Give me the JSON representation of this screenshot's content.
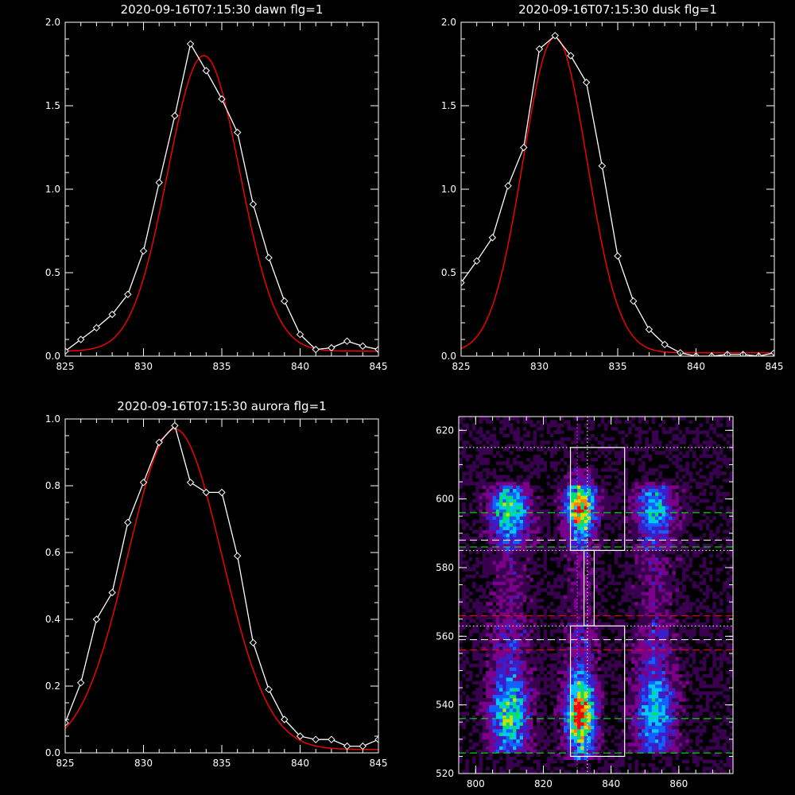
{
  "chart_data": [
    {
      "id": "dawn",
      "type": "line",
      "title": "2020-09-16T07:15:30 dawn flg=1",
      "xlim": [
        825,
        845
      ],
      "ylim": [
        0,
        2
      ],
      "xticks": [
        825,
        830,
        835,
        840,
        845
      ],
      "yticks": [
        "0.0",
        "0.5",
        "1.0",
        "1.5",
        "2.0"
      ],
      "ytick_values": [
        0,
        0.5,
        1.0,
        1.5,
        2.0
      ],
      "series": [
        {
          "role": "data",
          "color": "#ffffff",
          "marker": "diamond",
          "x": [
            825,
            826,
            827,
            828,
            829,
            830,
            831,
            832,
            833,
            834,
            835,
            836,
            837,
            838,
            839,
            840,
            841,
            842,
            843,
            844,
            845
          ],
          "y": [
            0.03,
            0.1,
            0.17,
            0.25,
            0.37,
            0.63,
            1.04,
            1.44,
            1.87,
            1.71,
            1.54,
            1.34,
            0.91,
            0.59,
            0.33,
            0.13,
            0.04,
            0.05,
            0.09,
            0.06,
            0.04
          ]
        },
        {
          "role": "fit",
          "color": "#ff0000",
          "gaussian": {
            "amplitude": 1.77,
            "center": 833.85,
            "sigma": 2.3,
            "baseline": 0.03
          }
        }
      ]
    },
    {
      "id": "dusk",
      "type": "line",
      "title": "2020-09-16T07:15:30 dusk flg=1",
      "xlim": [
        825,
        845
      ],
      "ylim": [
        0,
        2
      ],
      "xticks": [
        825,
        830,
        835,
        840,
        845
      ],
      "yticks": [
        "0.0",
        "0.5",
        "1.0",
        "1.5",
        "2.0"
      ],
      "ytick_values": [
        0,
        0.5,
        1.0,
        1.5,
        2.0
      ],
      "series": [
        {
          "role": "data",
          "color": "#ffffff",
          "marker": "diamond",
          "x": [
            825,
            826,
            827,
            828,
            829,
            830,
            831,
            832,
            833,
            834,
            835,
            836,
            837,
            838,
            839,
            840,
            841,
            842,
            843,
            844,
            845
          ],
          "y": [
            0.44,
            0.57,
            0.71,
            1.02,
            1.25,
            1.84,
            1.92,
            1.8,
            1.64,
            1.14,
            0.6,
            0.33,
            0.16,
            0.07,
            0.02,
            0.0,
            0.0,
            0.01,
            0.01,
            0.0,
            0.02
          ]
        },
        {
          "role": "fit",
          "color": "#ff0000",
          "gaussian": {
            "amplitude": 1.89,
            "center": 831.0,
            "sigma": 2.05,
            "baseline": 0.02
          }
        }
      ]
    },
    {
      "id": "aurora",
      "type": "line",
      "title": "2020-09-16T07:15:30 aurora flg=1",
      "xlim": [
        825,
        845
      ],
      "ylim": [
        0,
        1
      ],
      "xticks": [
        825,
        830,
        835,
        840,
        845
      ],
      "yticks": [
        "0.0",
        "0.2",
        "0.4",
        "0.6",
        "0.8",
        "1.0"
      ],
      "ytick_values": [
        0,
        0.2,
        0.4,
        0.6,
        0.8,
        1.0
      ],
      "series": [
        {
          "role": "data",
          "color": "#ffffff",
          "marker": "diamond",
          "x": [
            825,
            826,
            827,
            828,
            829,
            830,
            831,
            832,
            833,
            834,
            835,
            836,
            837,
            838,
            839,
            840,
            841,
            842,
            843,
            844,
            845
          ],
          "y": [
            0.09,
            0.21,
            0.4,
            0.48,
            0.69,
            0.81,
            0.93,
            0.98,
            0.81,
            0.78,
            0.78,
            0.59,
            0.33,
            0.19,
            0.1,
            0.05,
            0.04,
            0.04,
            0.02,
            0.02,
            0.04
          ]
        },
        {
          "role": "fit",
          "color": "#ff0000",
          "gaussian": {
            "amplitude": 0.96,
            "center": 832.0,
            "sigma": 3.0,
            "baseline": 0.01
          }
        }
      ]
    },
    {
      "id": "image",
      "type": "heatmap",
      "xlim": [
        795,
        876
      ],
      "ylim": [
        520,
        624
      ],
      "xticks": [
        800,
        820,
        840,
        860
      ],
      "yticks": [
        520,
        540,
        560,
        580,
        600,
        620
      ],
      "colormap": [
        "#000000",
        "#3a0050",
        "#7a008a",
        "#3b1ec8",
        "#1460ff",
        "#00c8ff",
        "#00e070",
        "#d0e000",
        "#ff8000",
        "#ff0000"
      ],
      "emission_columns": [
        {
          "x": 810,
          "width": 4,
          "y_from": 528,
          "y_to": 600,
          "peak_y": 537,
          "peak": 0.55,
          "upper_peak_y": 596,
          "upper_peak": 0.42
        },
        {
          "x": 831,
          "width": 3,
          "y_from": 526,
          "y_to": 604,
          "peak_y": 537,
          "peak": 1.0,
          "upper_peak_y": 597,
          "upper_peak": 0.72
        },
        {
          "x": 853,
          "width": 4,
          "y_from": 528,
          "y_to": 600,
          "peak_y": 537,
          "peak": 0.42,
          "upper_peak_y": 596,
          "upper_peak": 0.28
        }
      ],
      "boxes": [
        {
          "x0": 828,
          "x1": 844,
          "y0": 585,
          "y1": 615,
          "color": "#ffffff"
        },
        {
          "x0": 828,
          "x1": 844,
          "y0": 525,
          "y1": 563,
          "color": "#ffffff"
        }
      ],
      "connector": {
        "x0": 832,
        "x1": 835,
        "y0": 563,
        "y1": 585,
        "color": "#ffffff"
      },
      "vlines_dotted": [
        {
          "x": 830,
          "color": "#ff33ff"
        },
        {
          "x": 833,
          "color": "#ffffff"
        }
      ],
      "hlines": [
        {
          "y": 615,
          "style": "dotted",
          "color": "#ffffff"
        },
        {
          "y": 596,
          "style": "dashed",
          "color": "#00ff00"
        },
        {
          "y": 588,
          "style": "dashed",
          "color": "#ffffff"
        },
        {
          "y": 586,
          "style": "dashed",
          "color": "#00ff00"
        },
        {
          "y": 585,
          "style": "dotted",
          "color": "#ffffff"
        },
        {
          "y": 566,
          "style": "dashed",
          "color": "#ff0000"
        },
        {
          "y": 563,
          "style": "dotted",
          "color": "#ffffff"
        },
        {
          "y": 559,
          "style": "dashed",
          "color": "#ffffff"
        },
        {
          "y": 556,
          "style": "dashed",
          "color": "#ff0000"
        },
        {
          "y": 536,
          "style": "dashed",
          "color": "#00ff00"
        },
        {
          "y": 526,
          "style": "dashed",
          "color": "#00ff00"
        }
      ]
    }
  ]
}
